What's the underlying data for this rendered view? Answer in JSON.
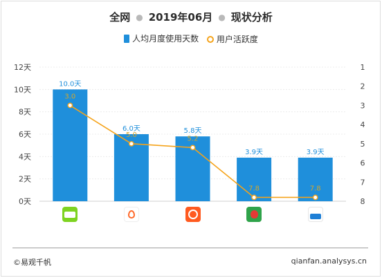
{
  "title": {
    "part1": "全网",
    "part2": "2019年06月",
    "part3": "现状分析"
  },
  "legend": {
    "bar_label": "人均月度使用天数",
    "line_label": "用户活跃度"
  },
  "footer": {
    "left": "©易观千帆",
    "right": "qianfan.analysys.cn"
  },
  "colors": {
    "bar": "#1f8fdb",
    "line": "#f5a31a",
    "bar_label": "#1f8fdb",
    "line_label": "#d4a62a"
  },
  "apps": [
    {
      "icon": "green-food-app-icon",
      "color": "#7ed321"
    },
    {
      "icon": "orange-drop-app-icon",
      "color": "#ff6a2b"
    },
    {
      "icon": "orange-circle-app-icon",
      "color": "#ff5a1f"
    },
    {
      "icon": "green-strawberry-app-icon",
      "color": "#2fa34a"
    },
    {
      "icon": "hema-app-icon",
      "color": "#1e7fd6"
    }
  ],
  "chart_data": {
    "type": "bar",
    "categories": [
      "",
      "",
      "",
      "",
      ""
    ],
    "series": [
      {
        "name": "人均月度使用天数",
        "type": "bar",
        "values": [
          10.0,
          6.0,
          5.8,
          3.9,
          3.9
        ],
        "labels": [
          "10.0天",
          "6.0天",
          "5.8天",
          "3.9天",
          "3.9天"
        ],
        "axis": "left"
      },
      {
        "name": "用户活跃度",
        "type": "line",
        "values": [
          3.0,
          5.0,
          5.2,
          7.8,
          7.8
        ],
        "labels": [
          "3.0",
          "5.0",
          "5.2",
          "7.8",
          "7.8"
        ],
        "axis": "right"
      }
    ],
    "y_left": {
      "ylim": [
        0,
        12
      ],
      "ticks": [
        0,
        2,
        4,
        6,
        8,
        10,
        12
      ],
      "tick_labels": [
        "0天",
        "2天",
        "4天",
        "6天",
        "8天",
        "10天",
        "12天"
      ]
    },
    "y_right": {
      "ylim": [
        1,
        8
      ],
      "inverted": true,
      "ticks": [
        1,
        2,
        3,
        4,
        5,
        6,
        7,
        8
      ],
      "tick_labels": [
        "1",
        "2",
        "3",
        "4",
        "5",
        "6",
        "7",
        "8"
      ]
    },
    "grid": true,
    "legend_position": "top-center"
  }
}
